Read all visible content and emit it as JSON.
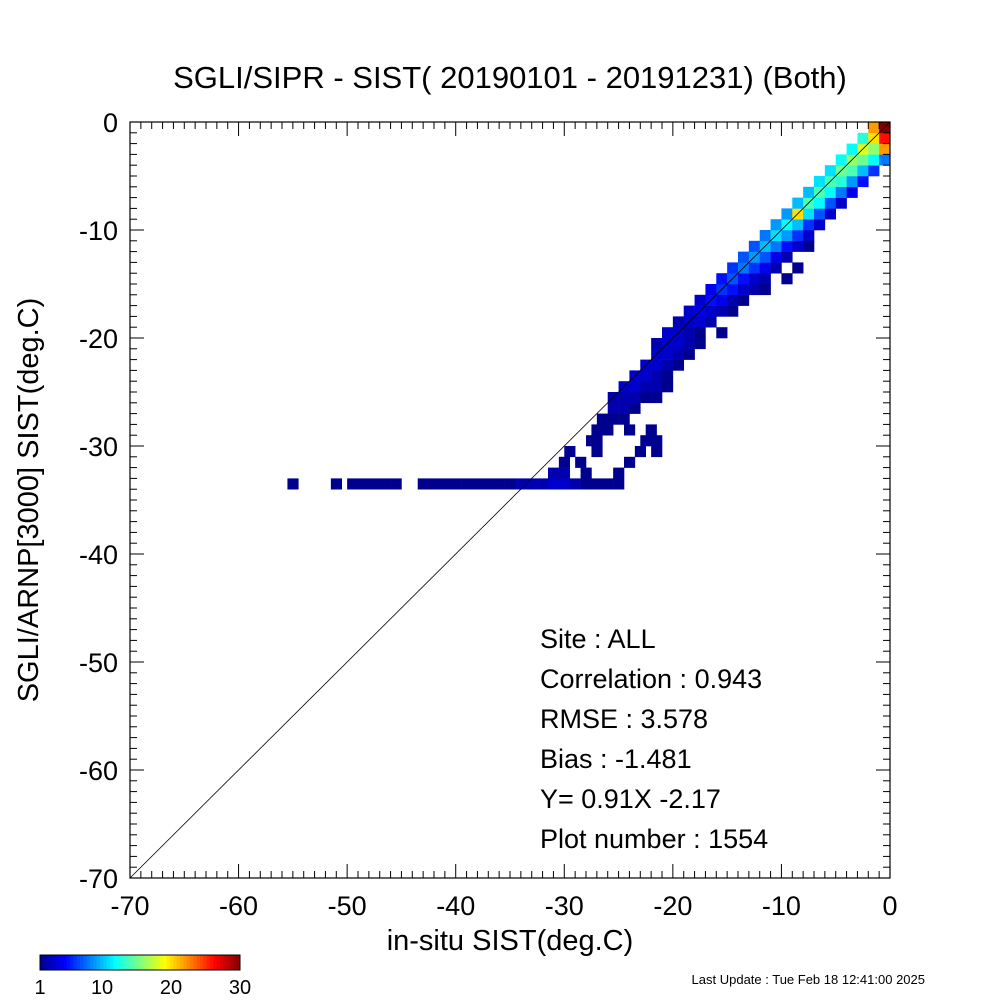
{
  "chart_data": {
    "type": "heatmap",
    "title": "SGLI/SIPR - SIST( 20190101 - 20191231) (Both)",
    "xlabel": "in-situ SIST(deg.C)",
    "ylabel": "SGLI/ARNP[3000]    SIST(deg.C)",
    "xlim": [
      -70,
      0
    ],
    "ylim": [
      -70,
      0
    ],
    "xticks": [
      "-70",
      "-60",
      "-50",
      "-40",
      "-30",
      "-20",
      "-10",
      "0"
    ],
    "yticks": [
      "0",
      "-10",
      "-20",
      "-30",
      "-40",
      "-50",
      "-60",
      "-70"
    ],
    "one_to_one_line": true,
    "colorbar": {
      "min": 1,
      "max": 30,
      "ticks": [
        "1",
        "10",
        "20",
        "30"
      ],
      "colormap": [
        "#00008f",
        "#0000ff",
        "#0080ff",
        "#00ffff",
        "#80ff80",
        "#ffff00",
        "#ff8000",
        "#ff0000",
        "#800000"
      ]
    },
    "cells": [
      [
        -55,
        -33.5,
        1
      ],
      [
        -51,
        -33.5,
        1
      ],
      [
        -49.5,
        -33.5,
        1
      ],
      [
        -48.5,
        -33.5,
        1
      ],
      [
        -47.5,
        -33.5,
        1
      ],
      [
        -46.5,
        -33.5,
        1
      ],
      [
        -45.5,
        -33.5,
        1
      ],
      [
        -43,
        -33.5,
        1
      ],
      [
        -42,
        -33.5,
        1
      ],
      [
        -41,
        -33.5,
        1
      ],
      [
        -40,
        -33.5,
        1
      ],
      [
        -39,
        -33.5,
        1
      ],
      [
        -38,
        -33.5,
        1
      ],
      [
        -37,
        -33.5,
        1
      ],
      [
        -36,
        -33.5,
        1
      ],
      [
        -35,
        -33.5,
        1
      ],
      [
        -34,
        -33.5,
        2
      ],
      [
        -33,
        -33.5,
        2
      ],
      [
        -32,
        -33.5,
        2
      ],
      [
        -31,
        -33.5,
        3
      ],
      [
        -30,
        -33.5,
        3
      ],
      [
        -29,
        -33.5,
        2
      ],
      [
        -28,
        -33.5,
        1
      ],
      [
        -27,
        -33.5,
        1
      ],
      [
        -26,
        -33.5,
        1
      ],
      [
        -25,
        -33.5,
        1
      ],
      [
        -31,
        -32.5,
        2
      ],
      [
        -30,
        -32.5,
        2
      ],
      [
        -28,
        -32.5,
        1
      ],
      [
        -25,
        -32.5,
        1
      ],
      [
        -30,
        -31.5,
        1
      ],
      [
        -28.5,
        -31.5,
        1
      ],
      [
        -24,
        -31.5,
        1
      ],
      [
        -29.5,
        -30.5,
        1
      ],
      [
        -27,
        -30.5,
        1
      ],
      [
        -23,
        -30.5,
        1
      ],
      [
        -21.5,
        -30.5,
        1
      ],
      [
        -27.5,
        -29.5,
        1
      ],
      [
        -27,
        -29.5,
        1
      ],
      [
        -22.5,
        -29.5,
        1
      ],
      [
        -21.5,
        -29.5,
        1
      ],
      [
        -27,
        -28.5,
        1
      ],
      [
        -26,
        -28.5,
        1
      ],
      [
        -24,
        -28.5,
        1
      ],
      [
        -22,
        -28.5,
        1
      ],
      [
        -26.5,
        -27.5,
        1
      ],
      [
        -25.5,
        -27.5,
        1
      ],
      [
        -24.5,
        -27.5,
        1
      ],
      [
        -25.5,
        -26.5,
        2
      ],
      [
        -24.5,
        -26.5,
        2
      ],
      [
        -23.5,
        -26.5,
        1
      ],
      [
        -25.5,
        -25.5,
        2
      ],
      [
        -24.5,
        -25.5,
        2
      ],
      [
        -23.5,
        -25.5,
        2
      ],
      [
        -22.5,
        -25.5,
        1
      ],
      [
        -21.5,
        -25.5,
        1
      ],
      [
        -24.5,
        -24.5,
        3
      ],
      [
        -23.5,
        -24.5,
        3
      ],
      [
        -22.5,
        -24.5,
        2
      ],
      [
        -21.5,
        -24.5,
        2
      ],
      [
        -20.5,
        -24.5,
        1
      ],
      [
        -23.5,
        -23.5,
        3
      ],
      [
        -22.5,
        -23.5,
        3
      ],
      [
        -21.5,
        -23.5,
        2
      ],
      [
        -20.5,
        -23.5,
        1
      ],
      [
        -22.5,
        -22.5,
        3
      ],
      [
        -21.5,
        -22.5,
        3
      ],
      [
        -20.5,
        -22.5,
        2
      ],
      [
        -19.5,
        -22.5,
        1
      ],
      [
        -21.5,
        -21.5,
        3
      ],
      [
        -20.5,
        -21.5,
        3
      ],
      [
        -19.5,
        -21.5,
        2
      ],
      [
        -18.5,
        -21.5,
        1
      ],
      [
        -21.5,
        -20.5,
        2
      ],
      [
        -20.5,
        -20.5,
        3
      ],
      [
        -19.5,
        -20.5,
        3
      ],
      [
        -18.5,
        -20.5,
        2
      ],
      [
        -17.5,
        -20.5,
        1
      ],
      [
        -20.5,
        -19.5,
        3
      ],
      [
        -19.5,
        -19.5,
        3
      ],
      [
        -18.5,
        -19.5,
        2
      ],
      [
        -17.5,
        -19.5,
        1
      ],
      [
        -15.5,
        -19.5,
        1
      ],
      [
        -19.5,
        -18.5,
        2
      ],
      [
        -18.5,
        -18.5,
        3
      ],
      [
        -17.5,
        -18.5,
        3
      ],
      [
        -16.5,
        -18.5,
        2
      ],
      [
        -18.5,
        -17.5,
        3
      ],
      [
        -17.5,
        -17.5,
        4
      ],
      [
        -16.5,
        -17.5,
        3
      ],
      [
        -15.5,
        -17.5,
        2
      ],
      [
        -14.5,
        -17.5,
        1
      ],
      [
        -17.5,
        -16.5,
        3
      ],
      [
        -16.5,
        -16.5,
        5
      ],
      [
        -15.5,
        -16.5,
        4
      ],
      [
        -14.5,
        -16.5,
        2
      ],
      [
        -13.5,
        -16.5,
        1
      ],
      [
        -16.5,
        -15.5,
        4
      ],
      [
        -15.5,
        -15.5,
        6
      ],
      [
        -14.5,
        -15.5,
        5
      ],
      [
        -13.5,
        -15.5,
        3
      ],
      [
        -12.5,
        -15.5,
        2
      ],
      [
        -11.5,
        -15.5,
        1
      ],
      [
        -15.5,
        -14.5,
        5
      ],
      [
        -14.5,
        -14.5,
        7
      ],
      [
        -13.5,
        -14.5,
        5
      ],
      [
        -12.5,
        -14.5,
        3
      ],
      [
        -11.5,
        -14.5,
        2
      ],
      [
        -9.5,
        -14.5,
        1
      ],
      [
        -14.5,
        -13.5,
        6
      ],
      [
        -13.5,
        -13.5,
        8
      ],
      [
        -12.5,
        -13.5,
        6
      ],
      [
        -11.5,
        -13.5,
        4
      ],
      [
        -10.5,
        -13.5,
        2
      ],
      [
        -8.5,
        -13.5,
        1
      ],
      [
        -13.5,
        -12.5,
        7
      ],
      [
        -12.5,
        -12.5,
        9
      ],
      [
        -11.5,
        -12.5,
        7
      ],
      [
        -10.5,
        -12.5,
        4
      ],
      [
        -9.5,
        -12.5,
        2
      ],
      [
        -12.5,
        -11.5,
        7
      ],
      [
        -11.5,
        -11.5,
        10
      ],
      [
        -10.5,
        -11.5,
        8
      ],
      [
        -9.5,
        -11.5,
        5
      ],
      [
        -8.5,
        -11.5,
        3
      ],
      [
        -7.5,
        -11.5,
        1
      ],
      [
        -11.5,
        -10.5,
        8
      ],
      [
        -10.5,
        -10.5,
        11
      ],
      [
        -9.5,
        -10.5,
        9
      ],
      [
        -8.5,
        -10.5,
        6
      ],
      [
        -7.5,
        -10.5,
        3
      ],
      [
        -10.5,
        -9.5,
        9
      ],
      [
        -9.5,
        -9.5,
        12
      ],
      [
        -8.5,
        -9.5,
        10
      ],
      [
        -7.5,
        -9.5,
        6
      ],
      [
        -6.5,
        -9.5,
        3
      ],
      [
        -9.5,
        -8.5,
        9
      ],
      [
        -8.5,
        -8.5,
        20
      ],
      [
        -7.5,
        -8.5,
        11
      ],
      [
        -6.5,
        -8.5,
        7
      ],
      [
        -5.5,
        -8.5,
        3
      ],
      [
        -8.5,
        -7.5,
        10
      ],
      [
        -7.5,
        -7.5,
        14
      ],
      [
        -6.5,
        -7.5,
        12
      ],
      [
        -5.5,
        -7.5,
        7
      ],
      [
        -4.5,
        -7.5,
        3
      ],
      [
        -7.5,
        -6.5,
        10
      ],
      [
        -6.5,
        -6.5,
        14
      ],
      [
        -5.5,
        -6.5,
        12
      ],
      [
        -4.5,
        -6.5,
        8
      ],
      [
        -3.5,
        -6.5,
        4
      ],
      [
        -6.5,
        -5.5,
        11
      ],
      [
        -5.5,
        -5.5,
        14
      ],
      [
        -4.5,
        -5.5,
        13
      ],
      [
        -3.5,
        -5.5,
        9
      ],
      [
        -2.5,
        -5.5,
        5
      ],
      [
        -5.5,
        -4.5,
        11
      ],
      [
        -4.5,
        -4.5,
        15
      ],
      [
        -3.5,
        -4.5,
        14
      ],
      [
        -2.5,
        -4.5,
        10
      ],
      [
        -1.5,
        -4.5,
        6
      ],
      [
        -4.5,
        -3.5,
        12
      ],
      [
        -3.5,
        -3.5,
        16
      ],
      [
        -2.5,
        -3.5,
        15
      ],
      [
        -1.5,
        -3.5,
        12
      ],
      [
        -0.5,
        -3.5,
        8
      ],
      [
        -3.5,
        -2.5,
        12
      ],
      [
        -2.5,
        -2.5,
        18
      ],
      [
        -1.5,
        -2.5,
        16
      ],
      [
        -0.5,
        -2.5,
        22
      ],
      [
        -2.5,
        -1.5,
        13
      ],
      [
        -1.5,
        -1.5,
        20
      ],
      [
        -0.5,
        -1.5,
        26
      ],
      [
        -1.5,
        -0.5,
        22
      ],
      [
        -0.5,
        -0.5,
        30
      ]
    ],
    "stats": {
      "site": "Site : ALL",
      "correlation": "Correlation :    0.943",
      "rmse": "RMSE :    3.578",
      "bias": "Bias :   -1.481",
      "regression": "Y=   0.91X  -2.17",
      "plot_number": "Plot number :      1554"
    }
  },
  "footer": {
    "last_update": "Last Update : Tue Feb 18 12:41:00 2025"
  }
}
